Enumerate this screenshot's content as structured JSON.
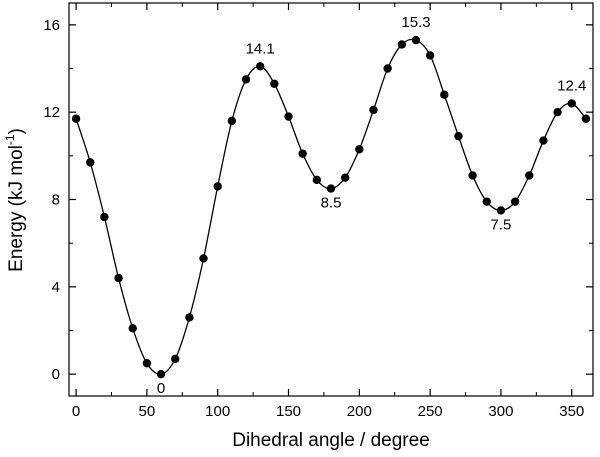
{
  "chart_data": {
    "type": "line",
    "xlabel": "Dihedral angle / degree",
    "ylabel": "Energy (kJ mol",
    "ylabel_sup": "-1",
    "ylabel_close": ")",
    "xlim": [
      -5,
      365
    ],
    "ylim": [
      -1,
      17
    ],
    "x_ticks": [
      0,
      50,
      100,
      150,
      200,
      250,
      300,
      350
    ],
    "y_ticks": [
      0,
      4,
      8,
      12,
      16
    ],
    "grid": false,
    "legend": "none",
    "line_color": "#000000",
    "marker": "filled-circle",
    "series": [
      {
        "x": [
          0,
          10,
          20,
          30,
          40,
          50,
          60,
          70,
          80,
          90,
          100,
          110,
          120,
          130,
          140,
          150,
          160,
          170,
          180,
          190,
          200,
          210,
          220,
          230,
          240,
          250,
          260,
          270,
          280,
          290,
          300,
          310,
          320,
          330,
          340,
          350,
          360
        ],
        "y": [
          11.7,
          9.7,
          7.2,
          4.4,
          2.1,
          0.5,
          0.0,
          0.7,
          2.6,
          5.3,
          8.6,
          11.6,
          13.5,
          14.1,
          13.3,
          11.8,
          10.1,
          8.9,
          8.5,
          9.0,
          10.3,
          12.1,
          14.0,
          15.1,
          15.3,
          14.6,
          12.8,
          10.9,
          9.1,
          7.9,
          7.5,
          7.9,
          9.1,
          10.7,
          12.0,
          12.4,
          11.7
        ]
      }
    ],
    "annotations": [
      {
        "x": 60,
        "y": 0.0,
        "text": "0",
        "pos": "below"
      },
      {
        "x": 130,
        "y": 14.1,
        "text": "14.1",
        "pos": "above"
      },
      {
        "x": 180,
        "y": 8.5,
        "text": "8.5",
        "pos": "below"
      },
      {
        "x": 240,
        "y": 15.3,
        "text": "15.3",
        "pos": "above"
      },
      {
        "x": 300,
        "y": 7.5,
        "text": "7.5",
        "pos": "below"
      },
      {
        "x": 350,
        "y": 12.4,
        "text": "12.4",
        "pos": "above"
      }
    ]
  }
}
